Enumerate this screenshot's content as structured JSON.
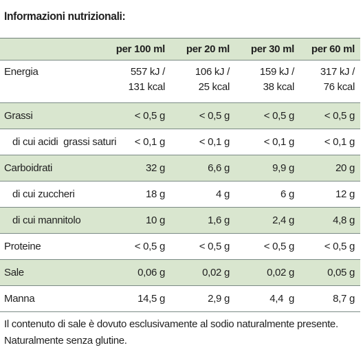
{
  "title": "Informazioni nutrizionali:",
  "columns": [
    "",
    "per 100 ml",
    "per 20 ml",
    "per 30 ml",
    "per 60 ml"
  ],
  "rows": [
    {
      "label": "Energia",
      "values": [
        [
          "557 kJ /",
          "131 kcal"
        ],
        [
          "106 kJ /",
          "25 kcal"
        ],
        [
          "159 kJ /",
          "38 kcal"
        ],
        [
          "317 kJ /",
          "76 kcal"
        ]
      ]
    },
    {
      "label": "Grassi",
      "values": [
        "< 0,5 g",
        "< 0,5 g",
        "< 0,5 g",
        "< 0,5 g"
      ]
    },
    {
      "label": "di cui acidi  grassi saturi",
      "values": [
        "< 0,1 g",
        "< 0,1 g",
        "< 0,1 g",
        "< 0,1 g"
      ]
    },
    {
      "label": "Carboidrati",
      "values": [
        "32 g",
        "6,6 g",
        "9,9 g",
        "20 g"
      ]
    },
    {
      "label": "di cui zuccheri",
      "values": [
        "18 g",
        "4 g",
        "6 g",
        "12 g"
      ]
    },
    {
      "label": "di cui mannitolo",
      "values": [
        "10 g",
        "1,6 g",
        "2,4 g",
        "4,8 g"
      ]
    },
    {
      "label": "Proteine",
      "values": [
        "< 0,5 g",
        "< 0,5 g",
        "< 0,5 g",
        "< 0,5 g"
      ]
    },
    {
      "label": "Sale",
      "values": [
        "0,06 g",
        "0,02 g",
        "0,02 g",
        "0,05 g"
      ]
    },
    {
      "label": "Manna",
      "values": [
        "14,5 g",
        "2,9 g",
        "4,4  g",
        "8,7 g"
      ]
    }
  ],
  "notes": [
    "Il contenuto di sale è dovuto esclusivamente al sodio naturalmente presente.",
    "Naturalmente senza glutine."
  ],
  "colors": {
    "shade": "#d9e6cf",
    "rule": "#7a8a84"
  }
}
